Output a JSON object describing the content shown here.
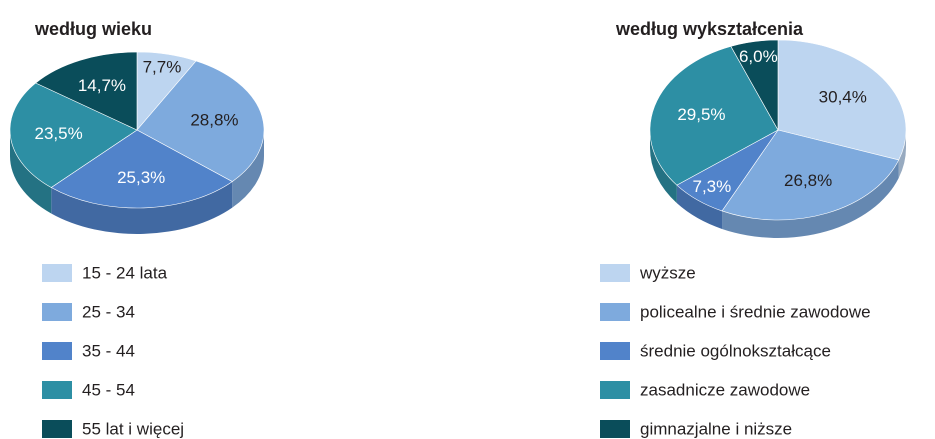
{
  "chart_data": [
    {
      "type": "pie",
      "title": "według wieku",
      "categories": [
        "15 - 24 lata",
        "25 - 34",
        "35 - 44",
        "45 - 54",
        "55 lat i więcej"
      ],
      "values": [
        7.7,
        28.8,
        25.3,
        23.5,
        14.7
      ],
      "value_labels": [
        "7,7%",
        "28,8%",
        "25,3%",
        "23,5%",
        "14,7%"
      ],
      "colors": [
        "#bdd5f0",
        "#7eaadd",
        "#5183ca",
        "#2d8fa4",
        "#0a4d5a"
      ]
    },
    {
      "type": "pie",
      "title": "według wykształcenia",
      "categories": [
        "wyższe",
        "policealne i średnie zawodowe",
        "średnie ogólnokształcące",
        "zasadnicze zawodowe",
        "gimnazjalne i niższe"
      ],
      "values": [
        30.4,
        26.8,
        7.3,
        29.5,
        6.0
      ],
      "value_labels": [
        "30,4%",
        "26,8%",
        "7,3%",
        "29,5%",
        "6,0%"
      ],
      "colors": [
        "#bdd5f0",
        "#7eaadd",
        "#5183ca",
        "#2d8fa4",
        "#0a4d5a"
      ]
    }
  ]
}
